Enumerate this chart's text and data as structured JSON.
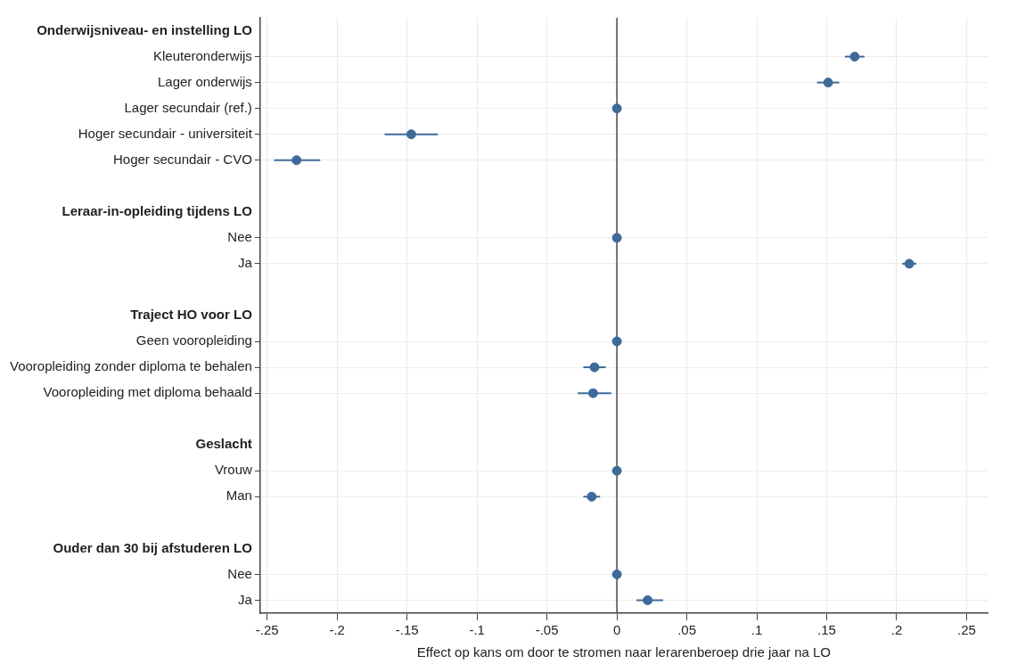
{
  "chart_data": {
    "type": "scatter",
    "orientation": "horizontal",
    "xlabel": "Effect op kans om door te stromen naar lerarenberoep drie jaar na LO",
    "categories": [
      "Onderwijsniveau- en instelling LO",
      "Kleuteronderwijs",
      "Lager onderwijs",
      "Lager secundair (ref.)",
      "Hoger secundair - universiteit",
      "Hoger secundair - CVO",
      null,
      "Leraar-in-opleiding tijdens LO",
      "Nee",
      "Ja",
      null,
      "Traject HO voor LO",
      "Geen vooropleiding",
      "Vooropleiding zonder diploma te behalen",
      "Vooropleiding met diploma behaald",
      null,
      "Geslacht",
      "Vrouw",
      "Man",
      null,
      "Ouder dan 30 bij afstuderen LO",
      "Nee",
      "Ja"
    ],
    "values": [
      null,
      0.17,
      0.151,
      0,
      -0.147,
      -0.229,
      null,
      null,
      0,
      0.209,
      null,
      null,
      0,
      -0.016,
      -0.017,
      null,
      null,
      0,
      -0.018,
      null,
      null,
      0,
      0.022
    ],
    "errors": [
      null,
      [
        0.163,
        0.177
      ],
      [
        0.143,
        0.159
      ],
      null,
      [
        -0.166,
        -0.128
      ],
      [
        -0.245,
        -0.212
      ],
      null,
      null,
      null,
      [
        0.204,
        0.214
      ],
      null,
      null,
      null,
      [
        -0.024,
        -0.008
      ],
      [
        -0.028,
        -0.004
      ],
      null,
      null,
      null,
      [
        -0.024,
        -0.012
      ],
      null,
      null,
      null,
      [
        0.014,
        0.033
      ]
    ],
    "color": "#3e6a9a",
    "marker": "circle",
    "grid": true,
    "legend": false,
    "xlim": [
      -0.255,
      0.265
    ],
    "xticks": [
      {
        "value": -0.25,
        "label": "-.25"
      },
      {
        "value": -0.2,
        "label": "-.2"
      },
      {
        "value": -0.15,
        "label": "-.15"
      },
      {
        "value": -0.1,
        "label": "-.1"
      },
      {
        "value": -0.05,
        "label": "-.05"
      },
      0,
      {
        "value": 0.05,
        "label": ".05"
      },
      {
        "value": 0.1,
        "label": ".1"
      },
      {
        "value": 0.15,
        "label": ".15"
      },
      {
        "value": 0.2,
        "label": ".2"
      },
      {
        "value": 0.25,
        "label": ".25"
      }
    ],
    "ref_lines": [
      {
        "axis": "x",
        "value": 0,
        "color": "#4a4a4a"
      }
    ]
  }
}
